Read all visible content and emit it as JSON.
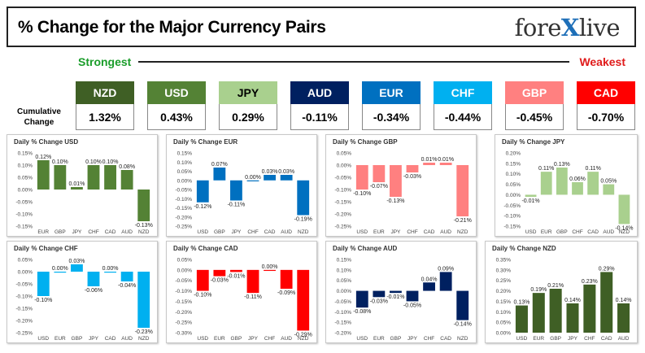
{
  "header": {
    "title": "% Change for the Major Currency Pairs",
    "logo_part1": "fore",
    "logo_x": "X",
    "logo_part2": "live"
  },
  "scale": {
    "strongest_label": "Strongest",
    "weakest_label": "Weakest",
    "cumulative_label_line1": "Cumulative",
    "cumulative_label_line2": "Change"
  },
  "currencies": [
    {
      "name": "NZD",
      "value": "1.32%",
      "color": "#3f5f25"
    },
    {
      "name": "USD",
      "value": "0.43%",
      "color": "#548235"
    },
    {
      "name": "JPY",
      "value": "0.29%",
      "color": "#a9d08e"
    },
    {
      "name": "AUD",
      "value": "-0.11%",
      "color": "#002060"
    },
    {
      "name": "EUR",
      "value": "-0.34%",
      "color": "#0070c0"
    },
    {
      "name": "CHF",
      "value": "-0.44%",
      "color": "#00b0f0"
    },
    {
      "name": "GBP",
      "value": "-0.45%",
      "color": "#ff8080"
    },
    {
      "name": "CAD",
      "value": "-0.70%",
      "color": "#ff0000"
    }
  ],
  "chart_data": [
    {
      "type": "bar",
      "title": "Daily % Change USD",
      "categories": [
        "EUR",
        "GBP",
        "JPY",
        "CHF",
        "CAD",
        "AUD",
        "NZD"
      ],
      "values": [
        0.12,
        0.1,
        0.01,
        0.1,
        0.1,
        0.08,
        -0.13
      ],
      "labels": [
        "0.12%",
        "0.10%",
        "0.01%",
        "0.10%",
        "0.10%",
        "0.08%",
        "-0.13%"
      ],
      "ylim": [
        -0.15,
        0.15
      ],
      "yticks": [
        0.15,
        0.1,
        0.05,
        0.0,
        -0.05,
        -0.1,
        -0.15
      ],
      "ytick_labels": [
        "0.15%",
        "0.10%",
        "0.05%",
        "0.00%",
        "-0.05%",
        "-0.10%",
        "-0.15%"
      ],
      "color": "#548235"
    },
    {
      "type": "bar",
      "title": "Daily % Change EUR",
      "categories": [
        "USD",
        "GBP",
        "JPY",
        "CHF",
        "CAD",
        "AUD",
        "NZD"
      ],
      "values": [
        -0.12,
        0.07,
        -0.11,
        0.0,
        0.03,
        0.03,
        -0.19
      ],
      "labels": [
        "-0.12%",
        "0.07%",
        "-0.11%",
        "0.00%",
        "0.03%",
        "0.03%",
        "-0.19%"
      ],
      "ylim": [
        -0.25,
        0.15
      ],
      "yticks": [
        0.15,
        0.1,
        0.05,
        0.0,
        -0.05,
        -0.1,
        -0.15,
        -0.2,
        -0.25
      ],
      "ytick_labels": [
        "0.15%",
        "0.10%",
        "0.05%",
        "0.00%",
        "-0.05%",
        "-0.10%",
        "-0.15%",
        "-0.20%",
        "-0.25%"
      ],
      "color": "#0070c0"
    },
    {
      "type": "bar",
      "title": "Daily % Change GBP",
      "categories": [
        "USD",
        "EUR",
        "JPY",
        "CHF",
        "CAD",
        "AUD",
        "NZD"
      ],
      "values": [
        -0.1,
        -0.07,
        -0.13,
        -0.03,
        0.01,
        0.01,
        -0.21
      ],
      "labels": [
        "-0.10%",
        "-0.07%",
        "-0.13%",
        "-0.03%",
        "0.01%",
        "0.01%",
        "-0.21%"
      ],
      "ylim": [
        -0.25,
        0.05
      ],
      "yticks": [
        0.05,
        0.0,
        -0.05,
        -0.1,
        -0.15,
        -0.2,
        -0.25
      ],
      "ytick_labels": [
        "0.05%",
        "0.00%",
        "-0.05%",
        "-0.10%",
        "-0.15%",
        "-0.20%",
        "-0.25%"
      ],
      "color": "#ff8080"
    },
    {
      "type": "bar",
      "title": "Daily % Change JPY",
      "categories": [
        "USD",
        "EUR",
        "GBP",
        "CHF",
        "CAD",
        "AUD",
        "NZD"
      ],
      "values": [
        -0.01,
        0.11,
        0.13,
        0.06,
        0.11,
        0.05,
        -0.14
      ],
      "labels": [
        "-0.01%",
        "0.11%",
        "0.13%",
        "0.06%",
        "0.11%",
        "0.05%",
        "-0.14%"
      ],
      "ylim": [
        -0.15,
        0.2
      ],
      "yticks": [
        0.2,
        0.15,
        0.1,
        0.05,
        0.0,
        -0.05,
        -0.1,
        -0.15
      ],
      "ytick_labels": [
        "0.20%",
        "0.15%",
        "0.10%",
        "0.05%",
        "0.00%",
        "-0.05%",
        "-0.10%",
        "-0.15%"
      ],
      "color": "#a9d08e"
    },
    {
      "type": "bar",
      "title": "Daily % Change CHF",
      "categories": [
        "USD",
        "EUR",
        "GBP",
        "JPY",
        "CAD",
        "AUD",
        "NZD"
      ],
      "values": [
        -0.1,
        0.0,
        0.03,
        -0.06,
        0.0,
        -0.04,
        -0.23
      ],
      "labels": [
        "-0.10%",
        "0.00%",
        "0.03%",
        "-0.06%",
        "0.00%",
        "-0.04%",
        "-0.23%"
      ],
      "ylim": [
        -0.25,
        0.05
      ],
      "yticks": [
        0.05,
        0.0,
        -0.05,
        -0.1,
        -0.15,
        -0.2,
        -0.25
      ],
      "ytick_labels": [
        "0.05%",
        "0.00%",
        "-0.05%",
        "-0.10%",
        "-0.15%",
        "-0.20%",
        "-0.25%"
      ],
      "color": "#00b0f0"
    },
    {
      "type": "bar",
      "title": "Daily % Change CAD",
      "categories": [
        "USD",
        "EUR",
        "GBP",
        "JPY",
        "CHF",
        "AUD",
        "NZD"
      ],
      "values": [
        -0.1,
        -0.03,
        -0.01,
        -0.11,
        0.0,
        -0.09,
        -0.29
      ],
      "labels": [
        "-0.10%",
        "-0.03%",
        "-0.01%",
        "-0.11%",
        "0.00%",
        "-0.09%",
        "-0.29%"
      ],
      "ylim": [
        -0.3,
        0.05
      ],
      "yticks": [
        0.05,
        0.0,
        -0.05,
        -0.1,
        -0.15,
        -0.2,
        -0.25,
        -0.3
      ],
      "ytick_labels": [
        "0.05%",
        "0.00%",
        "-0.05%",
        "-0.10%",
        "-0.15%",
        "-0.20%",
        "-0.25%",
        "-0.30%"
      ],
      "color": "#ff0000"
    },
    {
      "type": "bar",
      "title": "Daily % Change AUD",
      "categories": [
        "USD",
        "EUR",
        "GBP",
        "JPY",
        "CHF",
        "CAD",
        "NZD"
      ],
      "values": [
        -0.08,
        -0.03,
        -0.01,
        -0.05,
        0.04,
        0.09,
        -0.14
      ],
      "labels": [
        "-0.08%",
        "-0.03%",
        "-0.01%",
        "-0.05%",
        "0.04%",
        "0.09%",
        "-0.14%"
      ],
      "ylim": [
        -0.2,
        0.15
      ],
      "yticks": [
        0.15,
        0.1,
        0.05,
        0.0,
        -0.05,
        -0.1,
        -0.15,
        -0.2
      ],
      "ytick_labels": [
        "0.15%",
        "0.10%",
        "0.05%",
        "0.00%",
        "-0.05%",
        "-0.10%",
        "-0.15%",
        "-0.20%"
      ],
      "color": "#002060"
    },
    {
      "type": "bar",
      "title": "Daily % Change NZD",
      "categories": [
        "USD",
        "EUR",
        "GBP",
        "JPY",
        "CHF",
        "CAD",
        "AUD"
      ],
      "values": [
        0.13,
        0.19,
        0.21,
        0.14,
        0.23,
        0.29,
        0.14
      ],
      "labels": [
        "0.13%",
        "0.19%",
        "0.21%",
        "0.14%",
        "0.23%",
        "0.29%",
        "0.14%"
      ],
      "ylim": [
        0.0,
        0.35
      ],
      "yticks": [
        0.35,
        0.3,
        0.25,
        0.2,
        0.15,
        0.1,
        0.05,
        0.0
      ],
      "ytick_labels": [
        "0.35%",
        "0.30%",
        "0.25%",
        "0.20%",
        "0.15%",
        "0.10%",
        "0.05%",
        "0.00%"
      ],
      "color": "#3f5f25"
    }
  ]
}
